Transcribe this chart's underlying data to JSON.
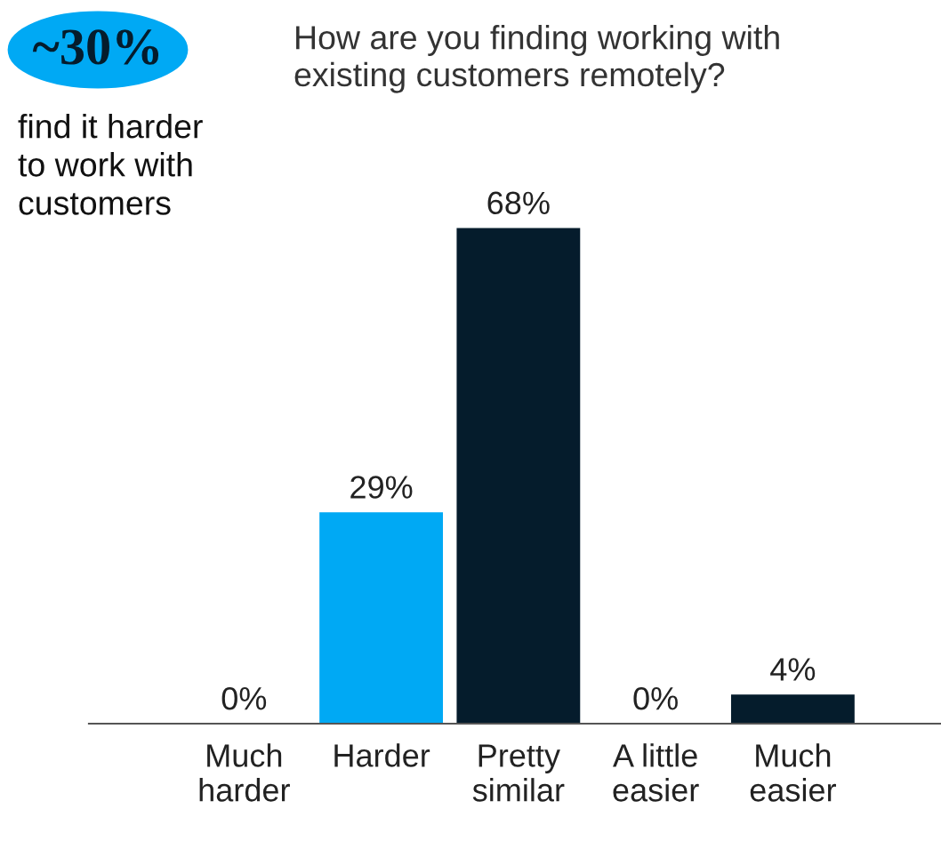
{
  "chart_data": {
    "type": "bar",
    "title": "How are you finding working with\nexisting customers remotely?",
    "categories": [
      "Much\nharder",
      "Harder",
      "Pretty\nsimilar",
      "A little\neasier",
      "Much\neasier"
    ],
    "values": [
      0,
      29,
      68,
      0,
      4
    ],
    "colors": [
      "#051c2c",
      "#00a9f4",
      "#051c2c",
      "#051c2c",
      "#051c2c"
    ],
    "value_labels": [
      "0%",
      "29%",
      "68%",
      "0%",
      "4%"
    ],
    "annotations": [
      "~30%",
      "find it harder\nto work with\ncustomers"
    ],
    "grid": false,
    "legend": false
  }
}
